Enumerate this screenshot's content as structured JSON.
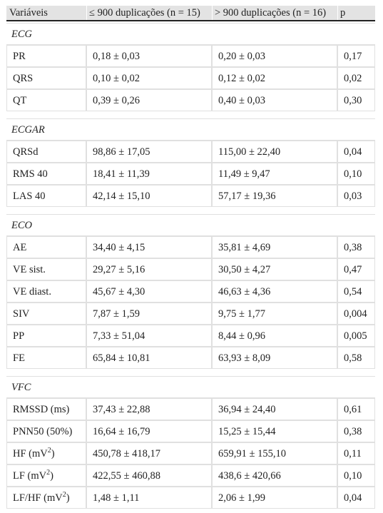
{
  "header": {
    "col1": "Variáveis",
    "col2": "≤ 900 duplicações (n = 15)",
    "col3": "> 900 duplicações (n = 16)",
    "col4": "p"
  },
  "sections": [
    {
      "title": "ECG",
      "rows": [
        [
          "PR",
          "0,18 ± 0,03",
          "0,20 ± 0,03",
          "0,17"
        ],
        [
          "QRS",
          "0,10 ± 0,02",
          "0,12 ± 0,02",
          "0,02"
        ],
        [
          "QT",
          "0,39 ± 0,26",
          "0,40 ± 0,03",
          "0,30"
        ]
      ]
    },
    {
      "title": "ECGAR",
      "rows": [
        [
          "QRSd",
          "98,86 ± 17,05",
          "115,00 ± 22,40",
          "0,04"
        ],
        [
          "RMS 40",
          "18,41 ± 11,39",
          "11,49 ± 9,47",
          "0,10"
        ],
        [
          "LAS 40",
          "42,14 ± 15,10",
          "57,17 ± 19,36",
          "0,03"
        ]
      ]
    },
    {
      "title": "ECO",
      "rows": [
        [
          "AE",
          "34,40 ± 4,15",
          "35,81 ± 4,69",
          "0,38"
        ],
        [
          "VE sist.",
          "29,27 ± 5,16",
          "30,50 ± 4,27",
          "0,47"
        ],
        [
          "VE diast.",
          "45,67 ± 4,30",
          "46,63 ± 4,36",
          "0,54"
        ],
        [
          "SIV",
          "7,87 ± 1,59",
          "9,75 ± 1,77",
          "0,004"
        ],
        [
          "PP",
          "7,33 ± 51,04",
          "8,44 ± 0,96",
          "0,005"
        ],
        [
          "FE",
          "65,84 ± 10,81",
          "63,93 ± 8,09",
          "0,58"
        ]
      ]
    },
    {
      "title": "VFC",
      "rows": [
        [
          "RMSSD (ms)",
          "37,43 ± 22,88",
          "36,94 ± 24,40",
          "0,61"
        ],
        [
          "PNN50 (50%)",
          "16,64 ± 16,79",
          "15,25 ± 15,44",
          "0,38"
        ],
        [
          "HF (mV²)",
          "450,78 ± 418,17",
          "659,91 ± 155,10",
          "0,11"
        ],
        [
          "LF (mV²)",
          "422,55 ± 460,88",
          "438,6 ± 420,66",
          "0,10"
        ],
        [
          "LF/HF (mV²)",
          "1,48 ± 1,11",
          "2,06 ± 1,99",
          "0,04"
        ]
      ]
    }
  ]
}
